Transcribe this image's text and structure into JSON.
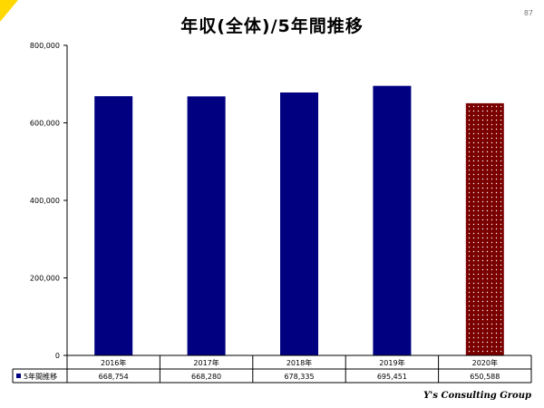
{
  "page": {
    "title": "年収(全体)/5年間推移",
    "page_number": "87",
    "footer_brand": "Y's Consulting Group"
  },
  "colors": {
    "bar": "#000080",
    "highlight_bar": "#7a0000",
    "highlight_dots": "#ffffff",
    "axis": "#000000",
    "corner": "#ffd800"
  },
  "chart_data": {
    "type": "bar",
    "categories": [
      "2016年",
      "2017年",
      "2018年",
      "2019年",
      "2020年"
    ],
    "series": [
      {
        "name": "5年間推移",
        "values": [
          668754,
          668280,
          678335,
          695451,
          650588
        ]
      }
    ],
    "table_values": [
      "668,754",
      "668,280",
      "678,335",
      "695,451",
      "650,588"
    ],
    "y_ticks": [
      "0",
      "200,000",
      "400,000",
      "600,000",
      "800,000"
    ],
    "ylim": [
      0,
      800000
    ],
    "highlight_index": 4,
    "grid": false,
    "legend": "data-table"
  }
}
